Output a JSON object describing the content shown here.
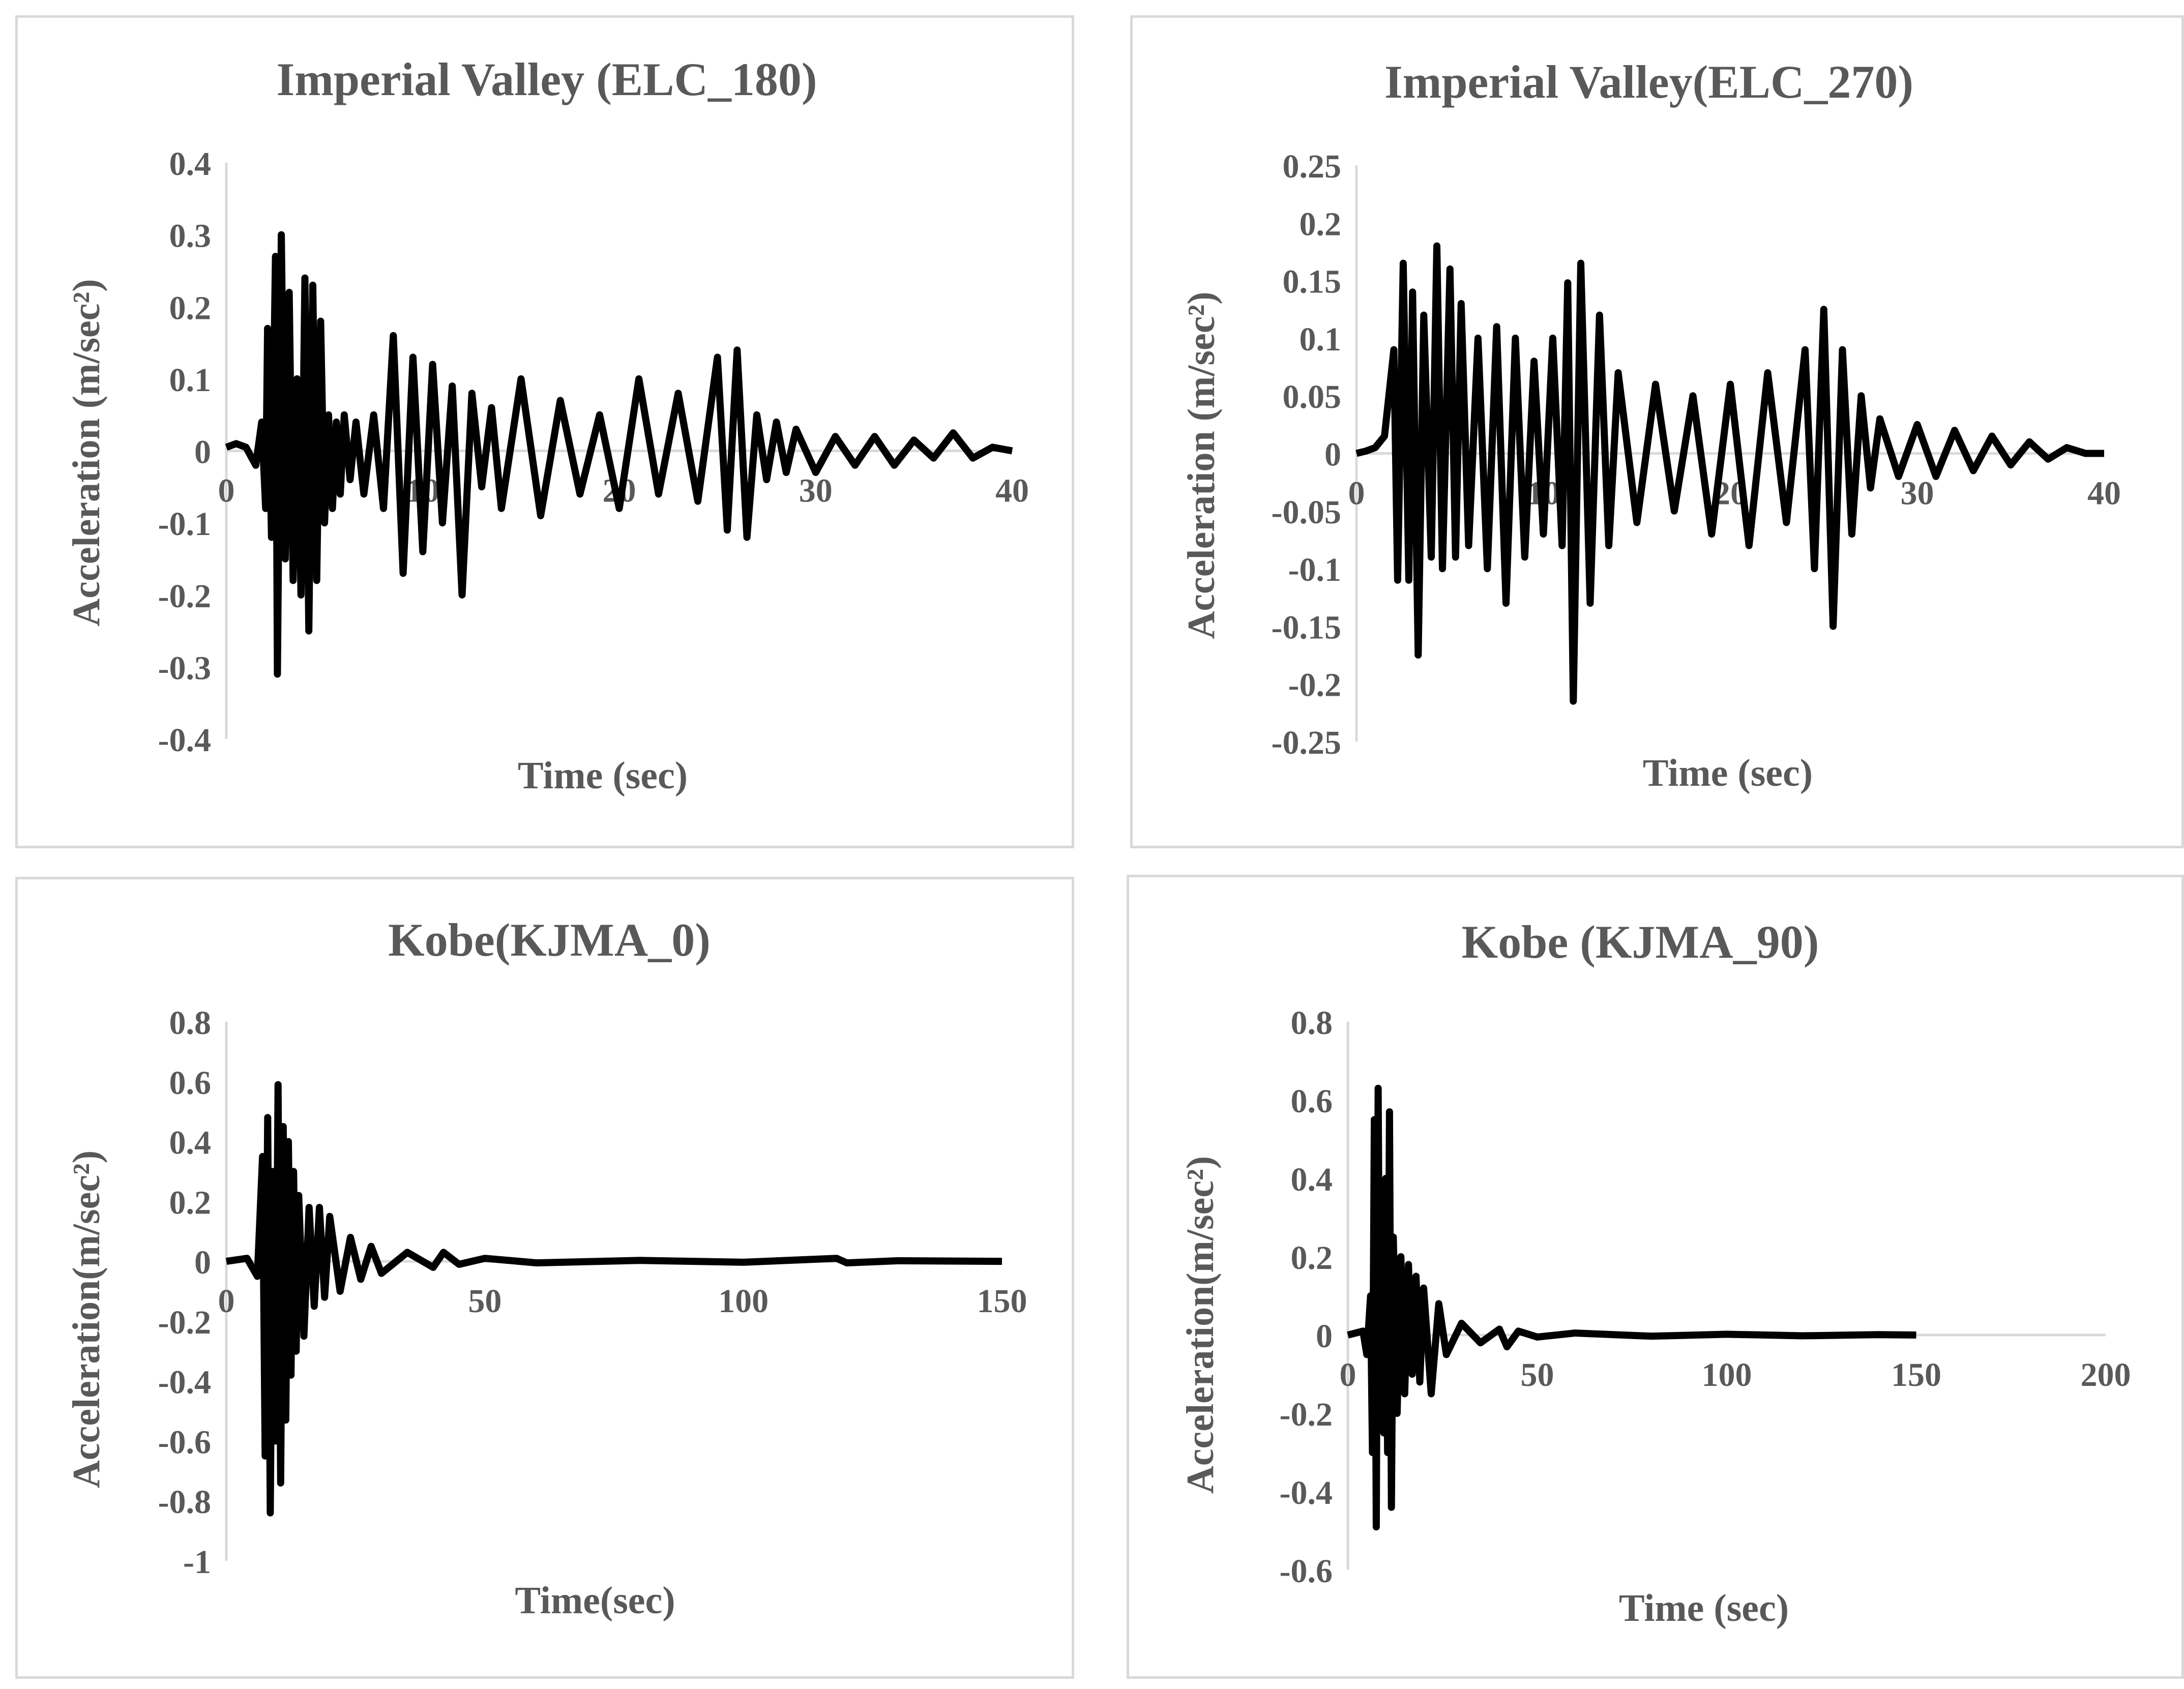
{
  "chart_data": [
    {
      "type": "line",
      "title": "Imperial Valley (ELC_180)",
      "xlabel": "Time (sec)",
      "ylabel": "Acceleration (m/sec²)",
      "xlim": [
        0,
        40
      ],
      "ylim": [
        -0.4,
        0.4
      ],
      "xticks": [
        "0",
        "10",
        "20",
        "30",
        "40"
      ],
      "yticks": [
        "0.4",
        "0.3",
        "0.2",
        "0.1",
        "0",
        "-0.1",
        "-0.2",
        "-0.3",
        "-0.4"
      ],
      "grid": false,
      "series": [
        {
          "color": "#000000",
          "x": [
            0,
            0.5,
            1.0,
            1.5,
            1.8,
            2.0,
            2.1,
            2.3,
            2.5,
            2.6,
            2.8,
            3.0,
            3.2,
            3.4,
            3.6,
            3.8,
            4.0,
            4.2,
            4.4,
            4.6,
            4.8,
            5.0,
            5.2,
            5.4,
            5.6,
            5.8,
            6.0,
            6.3,
            6.6,
            7.0,
            7.5,
            8.0,
            8.5,
            9.0,
            9.5,
            10.0,
            10.5,
            11.0,
            11.5,
            12.0,
            12.5,
            13.0,
            13.5,
            14.0,
            15.0,
            16.0,
            17.0,
            18.0,
            19.0,
            20.0,
            21.0,
            22.0,
            23.0,
            24.0,
            25.0,
            25.5,
            26.0,
            26.5,
            27.0,
            27.5,
            28.0,
            28.5,
            29.0,
            30.0,
            31.0,
            32.0,
            33.0,
            34.0,
            35.0,
            36.0,
            37.0,
            38.0,
            39.0,
            40.0
          ],
          "y": [
            0.005,
            0.01,
            0.005,
            -0.02,
            0.04,
            -0.08,
            0.17,
            -0.12,
            0.27,
            -0.31,
            0.3,
            -0.15,
            0.22,
            -0.18,
            0.1,
            -0.2,
            0.24,
            -0.25,
            0.23,
            -0.18,
            0.18,
            -0.1,
            0.05,
            -0.08,
            0.04,
            -0.06,
            0.05,
            -0.04,
            0.04,
            -0.06,
            0.05,
            -0.08,
            0.16,
            -0.17,
            0.13,
            -0.14,
            0.12,
            -0.1,
            0.09,
            -0.2,
            0.08,
            -0.05,
            0.06,
            -0.08,
            0.1,
            -0.09,
            0.07,
            -0.06,
            0.05,
            -0.08,
            0.1,
            -0.06,
            0.08,
            -0.07,
            0.13,
            -0.11,
            0.14,
            -0.12,
            0.05,
            -0.04,
            0.04,
            -0.03,
            0.03,
            -0.03,
            0.02,
            -0.02,
            0.02,
            -0.02,
            0.015,
            -0.01,
            0.025,
            -0.01,
            0.005,
            0
          ]
        }
      ]
    },
    {
      "type": "line",
      "title": "Imperial Valley(ELC_270)",
      "xlabel": "Time (sec)",
      "ylabel": "Acceleration (m/sec²)",
      "xlim": [
        0,
        40
      ],
      "ylim": [
        -0.25,
        0.25
      ],
      "xticks": [
        "0",
        "10",
        "20",
        "30",
        "40"
      ],
      "yticks": [
        "0.25",
        "0.2",
        "0.15",
        "0.1",
        "0.05",
        "0",
        "-0.05",
        "-0.1",
        "-0.15",
        "-0.2",
        "-0.25"
      ],
      "grid": false,
      "series": [
        {
          "color": "#000000",
          "x": [
            0,
            0.5,
            1.0,
            1.5,
            2.0,
            2.2,
            2.5,
            2.8,
            3.0,
            3.3,
            3.6,
            4.0,
            4.3,
            4.6,
            5.0,
            5.3,
            5.6,
            6.0,
            6.5,
            7.0,
            7.5,
            8.0,
            8.5,
            9.0,
            9.5,
            10.0,
            10.5,
            11.0,
            11.3,
            11.6,
            12.0,
            12.5,
            13.0,
            13.5,
            14.0,
            15.0,
            16.0,
            17.0,
            18.0,
            19.0,
            20.0,
            21.0,
            22.0,
            23.0,
            24.0,
            24.5,
            25.0,
            25.5,
            26.0,
            26.5,
            27.0,
            27.5,
            28.0,
            29.0,
            30.0,
            31.0,
            32.0,
            33.0,
            34.0,
            35.0,
            36.0,
            37.0,
            38.0,
            39.0,
            40.0
          ],
          "y": [
            0,
            0.002,
            0.005,
            0.015,
            0.09,
            -0.11,
            0.165,
            -0.11,
            0.14,
            -0.175,
            0.12,
            -0.09,
            0.18,
            -0.1,
            0.16,
            -0.09,
            0.13,
            -0.08,
            0.1,
            -0.1,
            0.11,
            -0.13,
            0.1,
            -0.09,
            0.08,
            -0.07,
            0.1,
            -0.08,
            0.148,
            -0.215,
            0.165,
            -0.13,
            0.12,
            -0.08,
            0.07,
            -0.06,
            0.06,
            -0.05,
            0.05,
            -0.07,
            0.06,
            -0.08,
            0.07,
            -0.06,
            0.09,
            -0.1,
            0.125,
            -0.15,
            0.09,
            -0.07,
            0.05,
            -0.03,
            0.03,
            -0.02,
            0.025,
            -0.02,
            0.02,
            -0.015,
            0.015,
            -0.01,
            0.01,
            -0.005,
            0.005,
            0,
            0
          ]
        }
      ]
    },
    {
      "type": "line",
      "title": "Kobe(KJMA_0)",
      "xlabel": "Time(sec)",
      "ylabel": "Acceleration(m/sec²)",
      "xlim": [
        0,
        150
      ],
      "ylim": [
        -1,
        0.8
      ],
      "xticks": [
        "0",
        "50",
        "100",
        "150"
      ],
      "yticks": [
        "0.8",
        "0.6",
        "0.4",
        "0.2",
        "0",
        "-0.2",
        "-0.4",
        "-0.6",
        "-0.8",
        "-1"
      ],
      "grid": false,
      "series": [
        {
          "color": "#000000",
          "x": [
            0,
            4,
            6,
            7,
            7.5,
            8,
            8.5,
            9,
            9.5,
            10,
            10.5,
            11,
            11.5,
            12,
            12.5,
            13,
            13.5,
            14,
            15,
            16,
            17,
            18,
            19,
            20,
            22,
            24,
            26,
            28,
            30,
            35,
            40,
            42,
            45,
            50,
            60,
            80,
            100,
            118,
            120,
            130,
            150
          ],
          "y": [
            0,
            0.01,
            -0.05,
            0.35,
            -0.65,
            0.48,
            -0.84,
            0.3,
            -0.6,
            0.59,
            -0.74,
            0.45,
            -0.53,
            0.4,
            -0.38,
            0.3,
            -0.3,
            0.22,
            -0.25,
            0.18,
            -0.15,
            0.18,
            -0.12,
            0.15,
            -0.1,
            0.08,
            -0.06,
            0.05,
            -0.04,
            0.03,
            -0.02,
            0.03,
            -0.01,
            0.01,
            -0.005,
            0.003,
            -0.003,
            0.01,
            -0.005,
            0.002,
            0
          ]
        }
      ]
    },
    {
      "type": "line",
      "title": "Kobe (KJMA_90)",
      "xlabel": "Time (sec)",
      "ylabel": "Acceleration(m/sec²)",
      "xlim": [
        0,
        200
      ],
      "ylim": [
        -0.6,
        0.8
      ],
      "xticks": [
        "0",
        "50",
        "100",
        "150",
        "200"
      ],
      "yticks": [
        "0.8",
        "0.6",
        "0.4",
        "0.2",
        "0",
        "-0.2",
        "-0.4",
        "-0.6"
      ],
      "grid": false,
      "series": [
        {
          "color": "#000000",
          "x": [
            0,
            4,
            5,
            6,
            6.5,
            7,
            7.5,
            8,
            8.5,
            9,
            9.5,
            10,
            10.5,
            11,
            11.5,
            12,
            13,
            14,
            15,
            16,
            17,
            18,
            19,
            20,
            22,
            24,
            26,
            30,
            35,
            40,
            42,
            45,
            50,
            60,
            80,
            100,
            120,
            140,
            150
          ],
          "y": [
            0,
            0.01,
            -0.05,
            0.1,
            -0.3,
            0.55,
            -0.49,
            0.63,
            -0.2,
            0.35,
            -0.25,
            0.4,
            -0.3,
            0.57,
            -0.44,
            0.25,
            -0.2,
            0.2,
            -0.15,
            0.18,
            -0.1,
            0.15,
            -0.12,
            0.12,
            -0.15,
            0.08,
            -0.05,
            0.03,
            -0.02,
            0.015,
            -0.03,
            0.01,
            -0.005,
            0.005,
            -0.003,
            0.002,
            -0.002,
            0.001,
            0
          ]
        }
      ]
    }
  ]
}
